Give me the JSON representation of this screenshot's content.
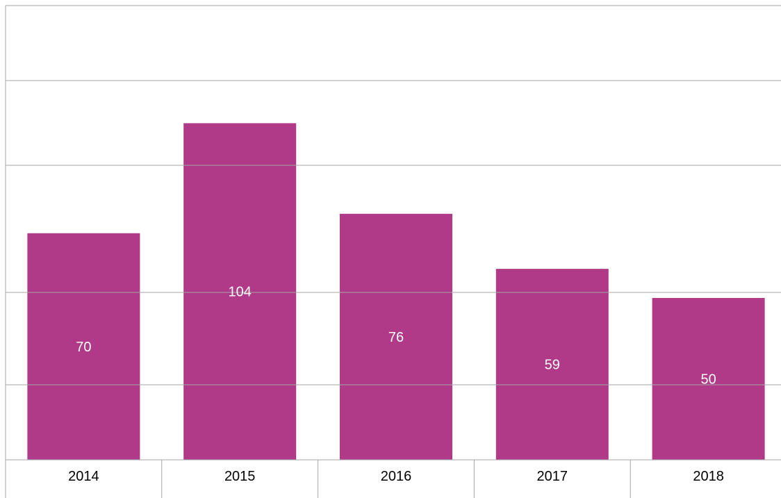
{
  "chart_data": {
    "type": "bar",
    "categories": [
      "2014",
      "2015",
      "2016",
      "2017",
      "2018"
    ],
    "values": [
      70,
      104,
      76,
      59,
      50
    ],
    "data_labels": [
      "70",
      "104",
      "76",
      "59",
      "50"
    ],
    "title": "",
    "xlabel": "",
    "ylabel": "",
    "grid": true,
    "bar_color": "#B03A88",
    "gridline_color": "#A6A6A6"
  }
}
